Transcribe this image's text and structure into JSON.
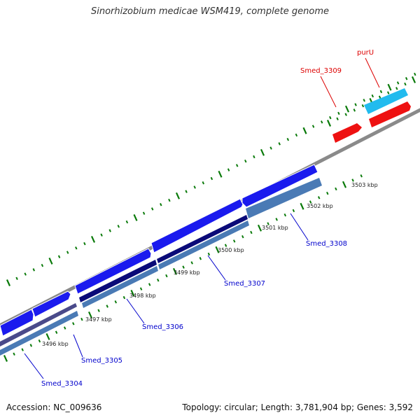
{
  "header": {
    "title": "Sinorhizobium medicae WSM419, complete genome"
  },
  "footer": {
    "accession": "Accession: NC_009636",
    "summary": "Topology: circular; Length: 3,781,904 bp; Genes: 3,592"
  },
  "scale": {
    "ticks": [
      {
        "label": "3496 kbp"
      },
      {
        "label": "3497 kbp"
      },
      {
        "label": "3498 kbp"
      },
      {
        "label": "3499 kbp"
      },
      {
        "label": "3500 kbp"
      },
      {
        "label": "3501 kbp"
      },
      {
        "label": "3502 kbp"
      },
      {
        "label": "3503 kbp"
      }
    ]
  },
  "genes": [
    {
      "name": "Smed_3304",
      "color": "#0000cc"
    },
    {
      "name": "Smed_3305",
      "color": "#0000cc"
    },
    {
      "name": "Smed_3306",
      "color": "#0000cc"
    },
    {
      "name": "Smed_3307",
      "color": "#0000cc"
    },
    {
      "name": "Smed_3308",
      "color": "#0000cc"
    },
    {
      "name": "Smed_3309",
      "color": "#dd0000"
    },
    {
      "name": "purU",
      "color": "#dd0000"
    }
  ],
  "colors": {
    "backbone": "#8a8a8a",
    "gene_blue": "#1a1aee",
    "gene_navy": "#0a0a78",
    "gene_steel": "#4a7ab5",
    "gene_slate": "#4a4a8a",
    "gene_red": "#ee1111",
    "gene_cyan": "#22bbee",
    "tick_green": "#0a7a0a"
  }
}
